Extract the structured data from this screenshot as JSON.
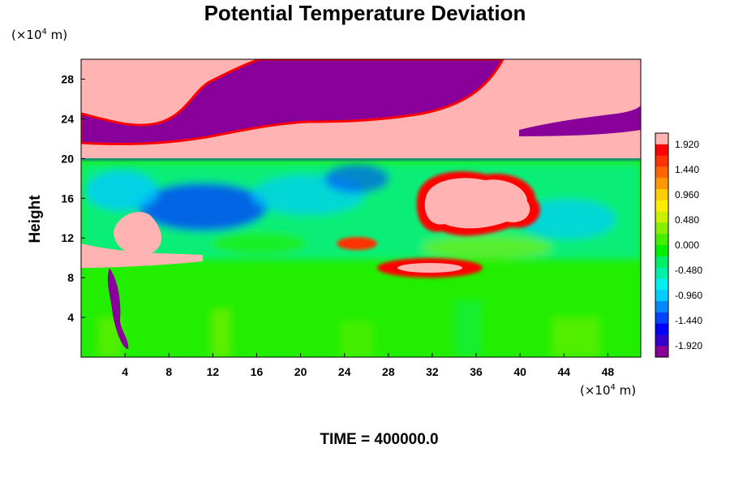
{
  "chart_data": {
    "type": "heatmap",
    "title": "Potential Temperature Deviation",
    "ylabel": "Height",
    "xlabel": "",
    "x_unit_prefix": "(×10",
    "x_unit_exp": "4",
    "x_unit_suffix": " m)",
    "y_unit_prefix": "(×10",
    "y_unit_exp": "4",
    "y_unit_suffix": " m)",
    "xlim": [
      0,
      51
    ],
    "ylim": [
      0,
      30
    ],
    "x_ticks": [
      4,
      8,
      12,
      16,
      20,
      24,
      28,
      32,
      36,
      40,
      44,
      48
    ],
    "y_ticks": [
      4,
      8,
      12,
      16,
      20,
      24,
      28
    ],
    "colorbar": {
      "range": [
        -2.16,
        2.16
      ],
      "labels": [
        "1.920",
        "1.440",
        "0.960",
        "0.480",
        "0.000",
        "-0.480",
        "-0.960",
        "-1.440",
        "-1.920"
      ],
      "colors": [
        "#880099",
        "#3300cc",
        "#0000ff",
        "#0044ff",
        "#0088ff",
        "#00ccff",
        "#00eeee",
        "#00eeaa",
        "#00ee66",
        "#00ee00",
        "#44ee00",
        "#88ee00",
        "#ccee00",
        "#ffee00",
        "#ffcc00",
        "#ff9900",
        "#ff6600",
        "#ff3300",
        "#ff0000",
        "#ffb3b3"
      ]
    },
    "footer": "TIME = 400000.0"
  }
}
